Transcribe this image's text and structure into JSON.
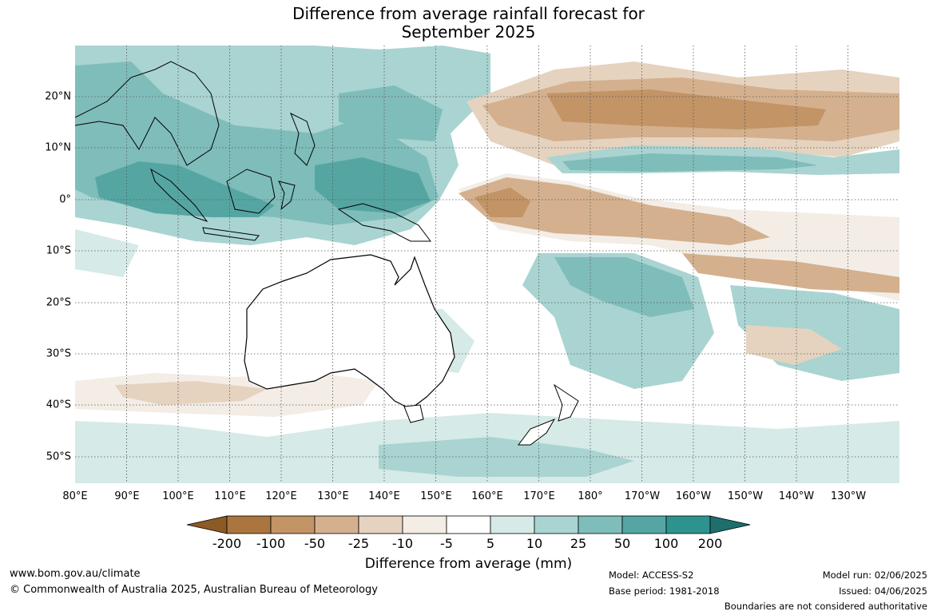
{
  "title_line1": "Difference from average rainfall forecast for",
  "title_line2": "September 2025",
  "lat_labels": [
    "20°N",
    "10°N",
    "0°",
    "10°S",
    "20°S",
    "30°S",
    "40°S",
    "50°S"
  ],
  "lon_labels": [
    "80°E",
    "90°E",
    "100°E",
    "110°E",
    "120°E",
    "130°E",
    "140°E",
    "150°E",
    "160°E",
    "170°E",
    "180°",
    "170°W",
    "160°W",
    "150°W",
    "140°W",
    "130°W"
  ],
  "legend": {
    "title": "Difference from average (mm)",
    "labels": [
      "-200",
      "-100",
      "-50",
      "-25",
      "-10",
      "-5",
      "5",
      "10",
      "25",
      "50",
      "100",
      "200"
    ],
    "colors": [
      "#8c5a24",
      "#ab7540",
      "#c29466",
      "#d4b08e",
      "#e5d3bf",
      "#f3ede6",
      "#ffffff",
      "#d6eae8",
      "#a9d4d1",
      "#7fbdba",
      "#55a6a3",
      "#2e938f",
      "#1d6f6c"
    ]
  },
  "footer": {
    "website": "www.bom.gov.au/climate",
    "copyright": "© Commonwealth of Australia 2025, Australian Bureau of Meteorology",
    "model": "Model: ACCESS-S2",
    "base_period": "Base period: 1981-2018",
    "model_run": "Model run: 02/06/2025",
    "issued": "Issued: 04/06/2025",
    "disclaimer": "Boundaries are not considered authoritative"
  }
}
